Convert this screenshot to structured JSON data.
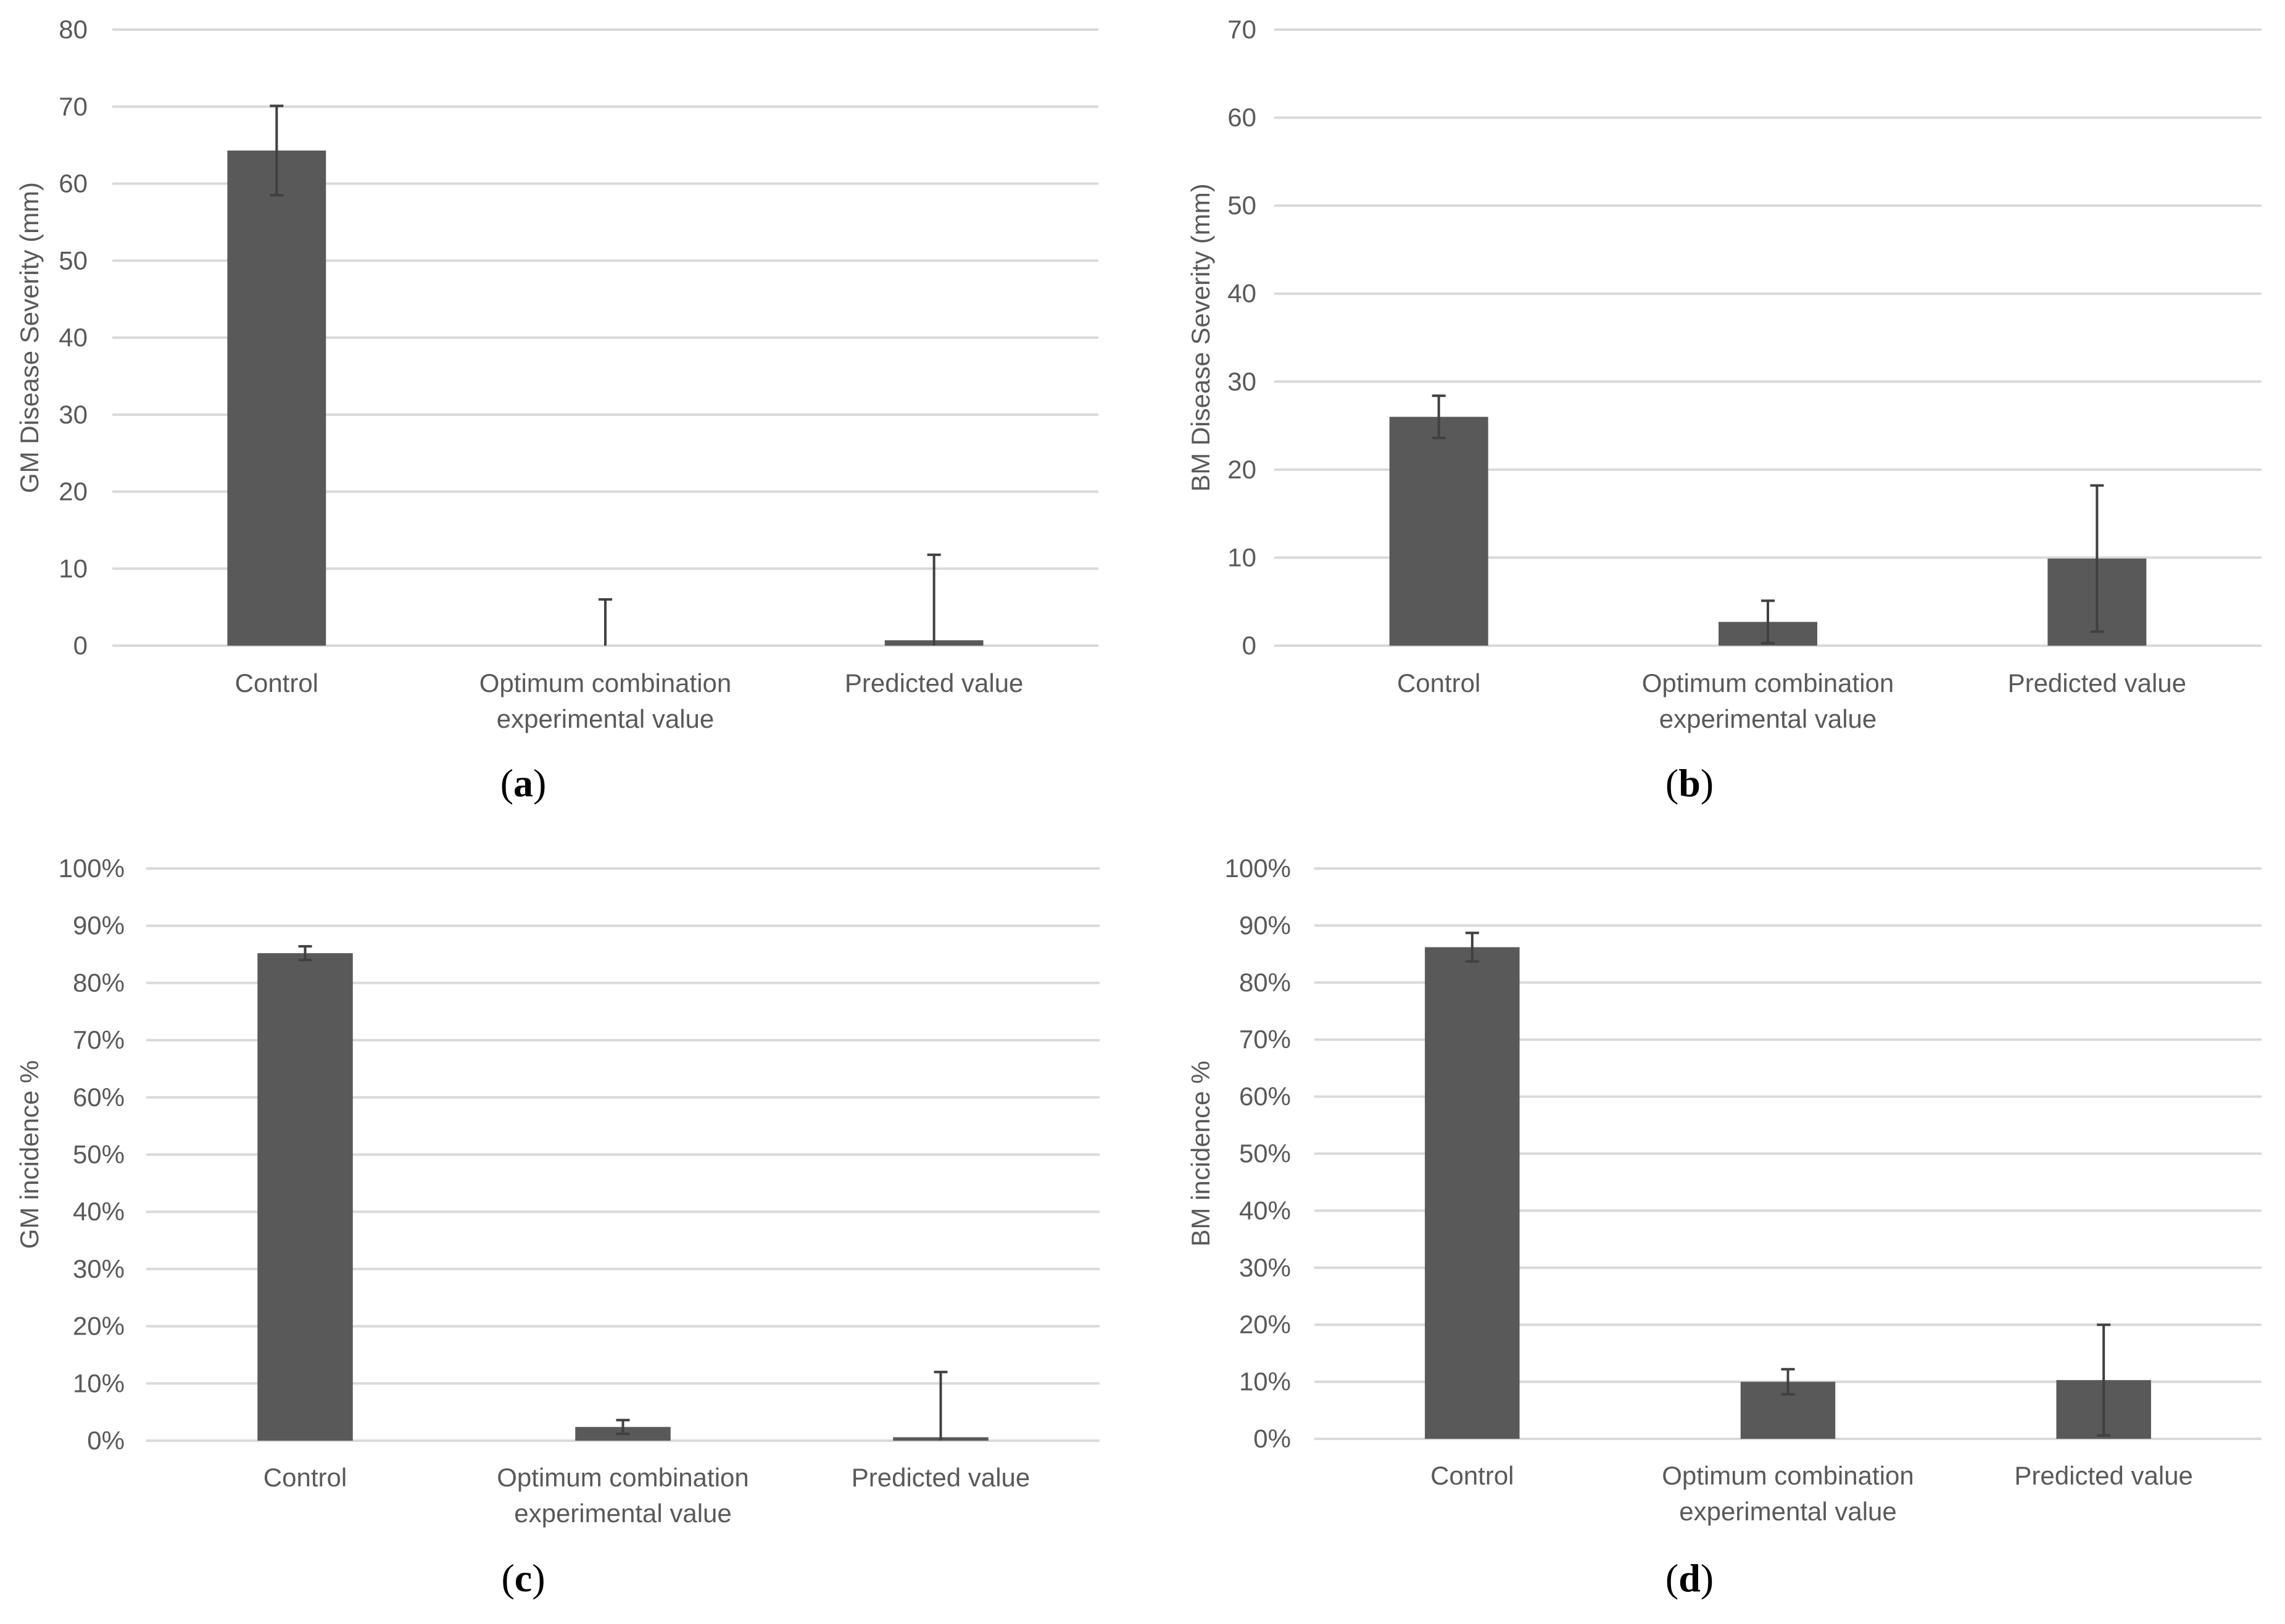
{
  "colors": {
    "bar": "#595959",
    "grid": "#d9d9d9",
    "text": "#595959",
    "error": "#404040"
  },
  "chart_data": [
    {
      "id": "a",
      "type": "bar",
      "panel_label": "a",
      "title": "",
      "xlabel": "",
      "ylabel": "GM Disease Severity (mm)",
      "categories": [
        [
          "Control"
        ],
        [
          "Optimum combination",
          "experimental value"
        ],
        [
          "Predicted value"
        ]
      ],
      "values": [
        64.3,
        0,
        0.7
      ],
      "errors": [
        5.8,
        6.0,
        11.1
      ],
      "ylim": [
        0,
        80
      ],
      "yticks": [
        0,
        10,
        20,
        30,
        40,
        50,
        60,
        70,
        80
      ],
      "ytick_labels": [
        "0",
        "10",
        "20",
        "30",
        "40",
        "50",
        "60",
        "70",
        "80"
      ],
      "grid": true
    },
    {
      "id": "b",
      "type": "bar",
      "panel_label": "b",
      "title": "",
      "xlabel": "",
      "ylabel": "BM Disease Severity (mm)",
      "categories": [
        [
          "Control"
        ],
        [
          "Optimum combination",
          "experimental value"
        ],
        [
          "Predicted value"
        ]
      ],
      "values": [
        26.0,
        2.7,
        9.9
      ],
      "errors": [
        2.4,
        2.4,
        8.3
      ],
      "ylim": [
        0,
        70
      ],
      "yticks": [
        0,
        10,
        20,
        30,
        40,
        50,
        60,
        70
      ],
      "ytick_labels": [
        "0",
        "10",
        "20",
        "30",
        "40",
        "50",
        "60",
        "70"
      ],
      "grid": true
    },
    {
      "id": "c",
      "type": "bar",
      "panel_label": "c",
      "title": "",
      "xlabel": "",
      "ylabel": "GM incidence %",
      "categories": [
        [
          "Control"
        ],
        [
          "Optimum combination",
          "experimental value"
        ],
        [
          "Predicted value"
        ]
      ],
      "values": [
        0.852,
        0.024,
        0.006
      ],
      "errors": [
        0.012,
        0.012,
        0.114
      ],
      "ylim": [
        0,
        1.0
      ],
      "yticks": [
        0,
        0.1,
        0.2,
        0.3,
        0.4,
        0.5,
        0.6,
        0.7,
        0.8,
        0.9,
        1.0
      ],
      "ytick_labels": [
        "0%",
        "10%",
        "20%",
        "30%",
        "40%",
        "50%",
        "60%",
        "70%",
        "80%",
        "90%",
        "100%"
      ],
      "grid": true
    },
    {
      "id": "d",
      "type": "bar",
      "panel_label": "d",
      "title": "",
      "xlabel": "",
      "ylabel": "BM incidence %",
      "categories": [
        [
          "Control"
        ],
        [
          "Optimum combination",
          "experimental value"
        ],
        [
          "Predicted value"
        ]
      ],
      "values": [
        0.862,
        0.1,
        0.103
      ],
      "errors": [
        0.025,
        0.022,
        0.097
      ],
      "ylim": [
        0,
        1.0
      ],
      "yticks": [
        0,
        0.1,
        0.2,
        0.3,
        0.4,
        0.5,
        0.6,
        0.7,
        0.8,
        0.9,
        1.0
      ],
      "ytick_labels": [
        "0%",
        "10%",
        "20%",
        "30%",
        "40%",
        "50%",
        "60%",
        "70%",
        "80%",
        "90%",
        "100%"
      ],
      "grid": true
    }
  ]
}
